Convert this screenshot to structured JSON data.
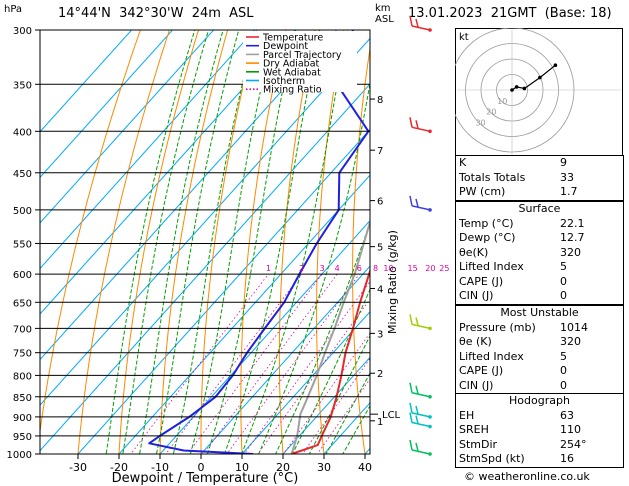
{
  "header": {
    "location": "14°44'N  342°30'W  24m  ASL",
    "datetime": "13.01.2023  21GMT  (Base: 18)",
    "pressure_unit": "hPa",
    "km_unit": "km",
    "asl_unit": "ASL"
  },
  "chart_data": {
    "type": "skew-t",
    "xlabel": "Dewpoint / Temperature (°C)",
    "right_axis_label": "Mixing Ratio (g/kg)",
    "x_ticks": [
      -30,
      -20,
      -10,
      0,
      10,
      20,
      30,
      40
    ],
    "pressure_levels": [
      300,
      350,
      400,
      450,
      500,
      550,
      600,
      650,
      700,
      750,
      800,
      850,
      900,
      950,
      1000
    ],
    "km_ticks": [
      {
        "km": 1,
        "p": 910
      },
      {
        "km": 2,
        "p": 795
      },
      {
        "km": 3,
        "p": 710
      },
      {
        "km": 4,
        "p": 625
      },
      {
        "km": 5,
        "p": 555
      },
      {
        "km": 6,
        "p": 487
      },
      {
        "km": 7,
        "p": 422
      },
      {
        "km": 8,
        "p": 365
      }
    ],
    "lcl": {
      "label": "LCL",
      "p": 893
    },
    "mixing_ratio_labels": [
      "1",
      "2",
      "3",
      "4",
      "6",
      "8",
      "10",
      "15",
      "20",
      "25"
    ],
    "legend": [
      "Temperature",
      "Dewpoint",
      "Parcel Trajectory",
      "Dry Adiabat",
      "Wet Adiabat",
      "Isotherm",
      "Mixing Ratio"
    ],
    "colors": {
      "temperature": "#e8282a",
      "dewpoint": "#2020e0",
      "parcel": "#a0a0a0",
      "dry_adiabat": "#ff8800",
      "wet_adiabat": "#00a000",
      "isotherm": "#00aaff",
      "mixing_ratio": "#e000a0"
    },
    "temperature": [
      {
        "p": 1000,
        "t": 22.1
      },
      {
        "p": 975,
        "t": 26.5
      },
      {
        "p": 950,
        "t": 25.5
      },
      {
        "p": 925,
        "t": 24.5
      },
      {
        "p": 900,
        "t": 23.5
      },
      {
        "p": 850,
        "t": 20.5
      },
      {
        "p": 800,
        "t": 17
      },
      {
        "p": 750,
        "t": 13
      },
      {
        "p": 700,
        "t": 9.5
      },
      {
        "p": 650,
        "t": 5.5
      },
      {
        "p": 600,
        "t": 1.5
      },
      {
        "p": 550,
        "t": -3
      },
      {
        "p": 500,
        "t": -7.5
      },
      {
        "p": 450,
        "t": -13
      },
      {
        "p": 400,
        "t": -19
      },
      {
        "p": 350,
        "t": -26.5
      },
      {
        "p": 300,
        "t": -34
      }
    ],
    "dewpoint": [
      {
        "p": 1000,
        "t": 12.7
      },
      {
        "p": 990,
        "t": -5
      },
      {
        "p": 970,
        "t": -15
      },
      {
        "p": 950,
        "t": -14
      },
      {
        "p": 900,
        "t": -11
      },
      {
        "p": 850,
        "t": -9
      },
      {
        "p": 800,
        "t": -9.5
      },
      {
        "p": 750,
        "t": -11
      },
      {
        "p": 700,
        "t": -12
      },
      {
        "p": 650,
        "t": -13
      },
      {
        "p": 600,
        "t": -15.5
      },
      {
        "p": 550,
        "t": -18
      },
      {
        "p": 500,
        "t": -20
      },
      {
        "p": 450,
        "t": -28
      },
      {
        "p": 400,
        "t": -30
      },
      {
        "p": 350,
        "t": -48
      },
      {
        "p": 300,
        "t": -56
      }
    ],
    "parcel": [
      {
        "p": 1000,
        "t": 22.1
      },
      {
        "p": 950,
        "t": 19.5
      },
      {
        "p": 893,
        "t": 15.5
      },
      {
        "p": 850,
        "t": 13.5
      },
      {
        "p": 800,
        "t": 11
      },
      {
        "p": 750,
        "t": 8
      },
      {
        "p": 700,
        "t": 5
      },
      {
        "p": 650,
        "t": 1.5
      },
      {
        "p": 600,
        "t": -2
      },
      {
        "p": 550,
        "t": -6.5
      },
      {
        "p": 500,
        "t": -11.5
      },
      {
        "p": 450,
        "t": -17
      },
      {
        "p": 400,
        "t": -23.5
      },
      {
        "p": 350,
        "t": -31
      },
      {
        "p": 300,
        "t": -40
      }
    ],
    "wind_barbs": [
      {
        "p": 300,
        "color": "#e8282a"
      },
      {
        "p": 400,
        "color": "#e8282a"
      },
      {
        "p": 500,
        "color": "#4040e0"
      },
      {
        "p": 700,
        "color": "#a0d000"
      },
      {
        "p": 850,
        "color": "#00c060"
      },
      {
        "p": 900,
        "color": "#00c0c0"
      },
      {
        "p": 925,
        "color": "#00c0c0"
      },
      {
        "p": 1000,
        "color": "#00c060"
      }
    ]
  },
  "hodograph": {
    "label": "kt",
    "rings": [
      10,
      20,
      30,
      40
    ],
    "ring_labels": [
      "10",
      "20",
      "30"
    ],
    "points": [
      [
        0,
        0
      ],
      [
        3,
        2
      ],
      [
        8,
        1
      ],
      [
        18,
        8
      ],
      [
        28,
        16
      ]
    ]
  },
  "indices": {
    "k": {
      "label": "K",
      "value": "9"
    },
    "totals": {
      "label": "Totals Totals",
      "value": "33"
    },
    "pw": {
      "label": "PW (cm)",
      "value": "1.7"
    }
  },
  "surface": {
    "title": "Surface",
    "rows": [
      {
        "label": "Temp (°C)",
        "value": "22.1"
      },
      {
        "label": "Dewp (°C)",
        "value": "12.7"
      },
      {
        "label": "θe(K)",
        "value": "320"
      },
      {
        "label": "Lifted Index",
        "value": "5"
      },
      {
        "label": "CAPE (J)",
        "value": "0"
      },
      {
        "label": "CIN (J)",
        "value": "0"
      }
    ]
  },
  "most_unstable": {
    "title": "Most Unstable",
    "rows": [
      {
        "label": "Pressure (mb)",
        "value": "1014"
      },
      {
        "label": "θe (K)",
        "value": "320"
      },
      {
        "label": "Lifted Index",
        "value": "5"
      },
      {
        "label": "CAPE (J)",
        "value": "0"
      },
      {
        "label": "CIN (J)",
        "value": "0"
      }
    ]
  },
  "hodograph_box": {
    "title": "Hodograph",
    "rows": [
      {
        "label": "EH",
        "value": "63"
      },
      {
        "label": "SREH",
        "value": "110"
      },
      {
        "label": "StmDir",
        "value": "254°"
      },
      {
        "label": "StmSpd (kt)",
        "value": "16"
      }
    ]
  },
  "copyright": "© weatheronline.co.uk"
}
